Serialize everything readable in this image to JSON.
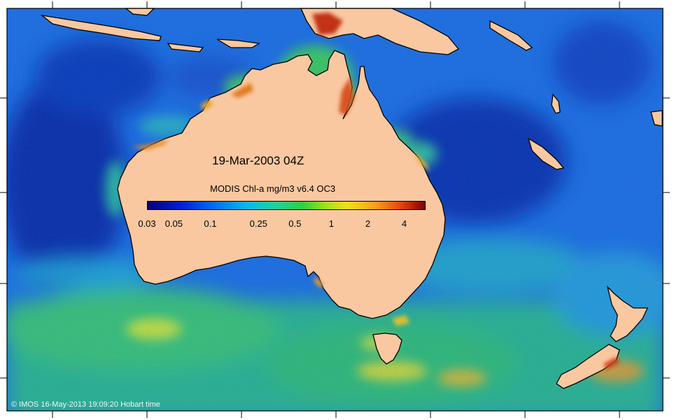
{
  "map": {
    "date_label": "19-Mar-2003 04Z",
    "credit": "© IMOS 16-May-2013 19:09:20 Hobart time",
    "colors": {
      "land": "#f9c8a0",
      "ocean_deep": "#0a2fa8",
      "ocean_mid": "#1f6fe0",
      "ocean_light": "#22b5d6",
      "coastal_green": "#3fcf55",
      "coastal_yellow": "#e8e23a",
      "coastal_red": "#c83010",
      "frame": "#000000"
    }
  },
  "colorbar": {
    "title": "MODIS Chl-a mg/m3 v6.4 OC3",
    "ticks": [
      "0.03",
      "0.05",
      "0.1",
      "0.25",
      "0.5",
      "1",
      "2",
      "4"
    ],
    "tick_values": [
      0.03,
      0.05,
      0.1,
      0.25,
      0.5,
      1,
      2,
      4
    ],
    "range": [
      0.03,
      6
    ],
    "scale": "log"
  }
}
